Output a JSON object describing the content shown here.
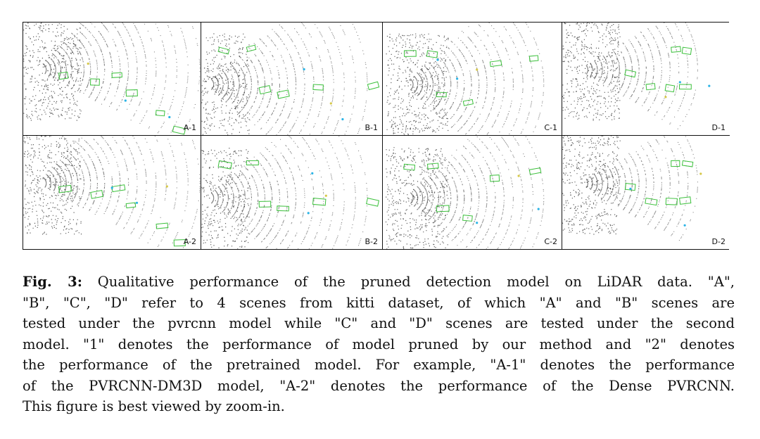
{
  "figure": {
    "panels": [
      {
        "id": "A-1",
        "label": "A-1"
      },
      {
        "id": "B-1",
        "label": "B-1"
      },
      {
        "id": "C-1",
        "label": "C-1"
      },
      {
        "id": "D-1",
        "label": "D-1"
      },
      {
        "id": "A-2",
        "label": "A-2"
      },
      {
        "id": "B-2",
        "label": "B-2"
      },
      {
        "id": "C-2",
        "label": "C-2"
      },
      {
        "id": "D-2",
        "label": "D-2"
      }
    ],
    "colors": {
      "box": "#3cc03c",
      "points": "#1a1a1a",
      "accent_cyan": "#2ab3e6",
      "accent_yellow": "#d6c84a"
    }
  },
  "caption": {
    "label": "Fig. 3:",
    "lines": [
      " Qualitative performance of the pruned detection model on LiDAR data. \"A\",",
      "\"B\", \"C\", \"D\" refer to 4 scenes from kitti dataset, of which \"A\" and \"B\" scenes are",
      "tested under the pvrcnn model while \"C\" and \"D\" scenes are tested under the second",
      "model. \"1\" denotes the performance of model pruned by our method and \"2\" denotes",
      "the performance of the pretrained model. For example, \"A-1\" denotes the performance",
      "of the PVRCNN-DM3D model, \"A-2\" denotes the performance of the Dense PVRCNN.",
      "This figure is best viewed by zoom-in."
    ]
  }
}
